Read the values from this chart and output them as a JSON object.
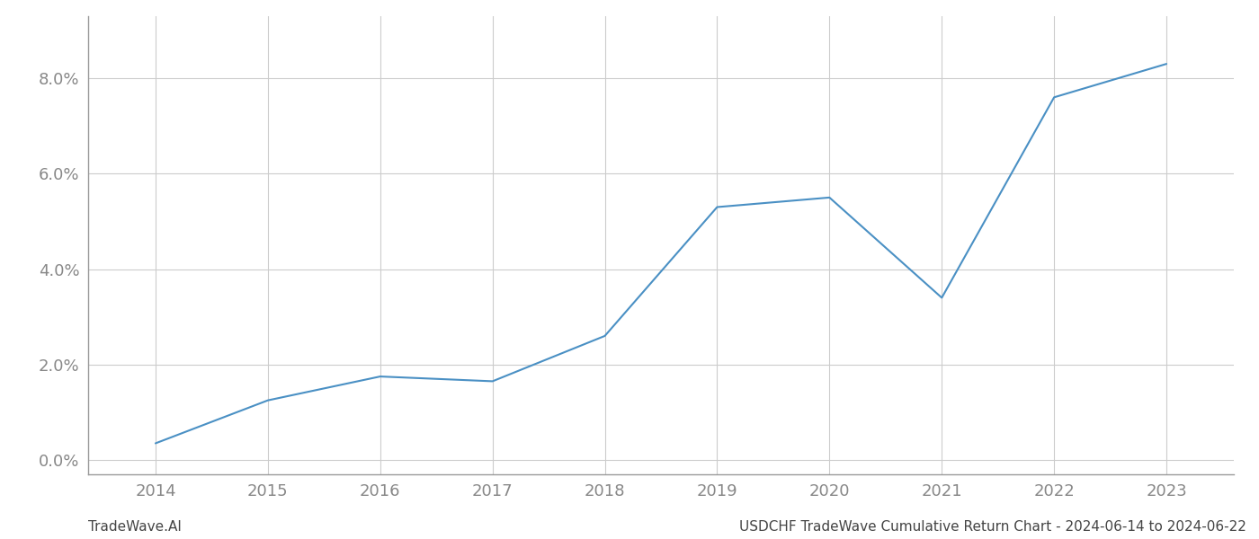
{
  "x_years": [
    2014,
    2015,
    2016,
    2017,
    2018,
    2019,
    2020,
    2021,
    2022,
    2023
  ],
  "y_values": [
    0.0035,
    0.0125,
    0.0175,
    0.0165,
    0.026,
    0.053,
    0.055,
    0.034,
    0.076,
    0.083
  ],
  "line_color": "#4a90c4",
  "background_color": "#ffffff",
  "grid_color": "#cccccc",
  "axis_color": "#999999",
  "tick_label_color": "#888888",
  "ylim": [
    -0.003,
    0.093
  ],
  "xlim": [
    2013.4,
    2023.6
  ],
  "yticks": [
    0.0,
    0.02,
    0.04,
    0.06,
    0.08
  ],
  "xticks": [
    2014,
    2015,
    2016,
    2017,
    2018,
    2019,
    2020,
    2021,
    2022,
    2023
  ],
  "footer_left": "TradeWave.AI",
  "footer_right": "USDCHF TradeWave Cumulative Return Chart - 2024-06-14 to 2024-06-22",
  "line_width": 1.5,
  "figsize": [
    14.0,
    6.0
  ],
  "dpi": 100
}
